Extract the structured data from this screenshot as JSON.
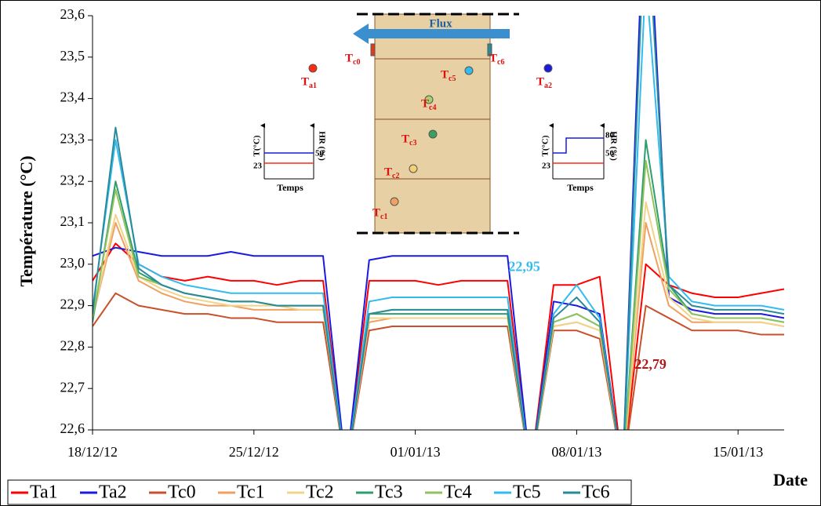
{
  "chart_data": {
    "type": "line",
    "y_label": "Température  (°C)",
    "x_label": "Date",
    "x": [
      "2012-12-18",
      "2012-12-19",
      "2012-12-20",
      "2012-12-21",
      "2012-12-22",
      "2012-12-23",
      "2012-12-24",
      "2012-12-25",
      "2012-12-26",
      "2012-12-27",
      "2012-12-28",
      "2012-12-29",
      "2012-12-30",
      "2012-12-31",
      "2013-01-01",
      "2013-01-02",
      "2013-01-03",
      "2013-01-04",
      "2013-01-05",
      "2013-01-06",
      "2013-01-07",
      "2013-01-08",
      "2013-01-09",
      "2013-01-10",
      "2013-01-11",
      "2013-01-12",
      "2013-01-13",
      "2013-01-14",
      "2013-01-15",
      "2013-01-16",
      "2013-01-17"
    ],
    "xlim": [
      "2012-12-18",
      "2013-01-17"
    ],
    "xticks": [
      {
        "value": "2012-12-18",
        "label": "18/12/12"
      },
      {
        "value": "2012-12-25",
        "label": "25/12/12"
      },
      {
        "value": "2013-01-01",
        "label": "01/01/13"
      },
      {
        "value": "2013-01-08",
        "label": "08/01/13"
      },
      {
        "value": "2013-01-15",
        "label": "15/01/13"
      }
    ],
    "ylim": [
      22.6,
      23.6
    ],
    "yticks": [
      {
        "value": 22.6,
        "label": "22,6"
      },
      {
        "value": 22.7,
        "label": "22,7"
      },
      {
        "value": 22.8,
        "label": "22,8"
      },
      {
        "value": 22.9,
        "label": "22,9"
      },
      {
        "value": 23.0,
        "label": "23,0"
      },
      {
        "value": 23.1,
        "label": "23,1"
      },
      {
        "value": 23.2,
        "label": "23,2"
      },
      {
        "value": 23.3,
        "label": "23,3"
      },
      {
        "value": 23.4,
        "label": "23,4"
      },
      {
        "value": 23.5,
        "label": "23,5"
      },
      {
        "value": 23.6,
        "label": "23,6"
      }
    ],
    "grid": false,
    "legend": "bottom-left",
    "series": [
      {
        "name": "Ta1",
        "color": "#ff0000",
        "values": [
          22.96,
          23.05,
          23.0,
          22.97,
          22.96,
          22.97,
          22.96,
          22.96,
          22.95,
          22.96,
          22.96,
          22.5,
          22.96,
          22.96,
          22.96,
          22.95,
          22.96,
          22.96,
          22.96,
          22.5,
          22.95,
          22.95,
          22.97,
          22.5,
          23.0,
          22.95,
          22.93,
          22.92,
          22.92,
          22.93,
          22.94
        ]
      },
      {
        "name": "Ta2",
        "color": "#1a1ae0",
        "values": [
          23.02,
          23.04,
          23.03,
          23.02,
          23.02,
          23.02,
          23.03,
          23.02,
          23.02,
          23.02,
          23.02,
          22.5,
          23.01,
          23.02,
          23.02,
          23.02,
          23.02,
          23.02,
          23.02,
          22.5,
          22.91,
          22.9,
          22.88,
          22.5,
          24.0,
          22.92,
          22.89,
          22.88,
          22.88,
          22.88,
          22.87
        ]
      },
      {
        "name": "Tc0",
        "color": "#c8502a",
        "values": [
          22.85,
          22.93,
          22.9,
          22.89,
          22.88,
          22.88,
          22.87,
          22.87,
          22.86,
          22.86,
          22.86,
          22.5,
          22.84,
          22.85,
          22.85,
          22.85,
          22.85,
          22.85,
          22.85,
          22.5,
          22.84,
          22.84,
          22.82,
          22.5,
          22.9,
          22.87,
          22.84,
          22.84,
          22.84,
          22.83,
          22.83
        ]
      },
      {
        "name": "Tc1",
        "color": "#f0a060",
        "values": [
          22.87,
          23.1,
          22.96,
          22.93,
          22.91,
          22.9,
          22.9,
          22.89,
          22.89,
          22.89,
          22.89,
          22.5,
          22.86,
          22.87,
          22.87,
          22.87,
          22.87,
          22.87,
          22.87,
          22.5,
          22.85,
          22.86,
          22.84,
          22.5,
          23.1,
          22.9,
          22.86,
          22.86,
          22.86,
          22.86,
          22.85
        ]
      },
      {
        "name": "Tc2",
        "color": "#f2d488",
        "values": [
          22.87,
          23.12,
          22.97,
          22.94,
          22.92,
          22.91,
          22.9,
          22.9,
          22.9,
          22.89,
          22.89,
          22.5,
          22.87,
          22.87,
          22.87,
          22.87,
          22.87,
          22.87,
          22.87,
          22.5,
          22.85,
          22.86,
          22.84,
          22.5,
          23.15,
          22.92,
          22.87,
          22.86,
          22.86,
          22.86,
          22.85
        ]
      },
      {
        "name": "Tc3",
        "color": "#2e9e6e",
        "values": [
          22.86,
          23.2,
          22.98,
          22.95,
          22.93,
          22.92,
          22.91,
          22.91,
          22.9,
          22.9,
          22.9,
          22.5,
          22.88,
          22.88,
          22.88,
          22.88,
          22.88,
          22.88,
          22.88,
          22.5,
          22.86,
          22.88,
          22.85,
          22.5,
          23.3,
          22.95,
          22.88,
          22.87,
          22.87,
          22.87,
          22.86
        ]
      },
      {
        "name": "Tc4",
        "color": "#92c25e",
        "values": [
          22.87,
          23.18,
          22.97,
          22.95,
          22.93,
          22.92,
          22.91,
          22.91,
          22.9,
          22.9,
          22.9,
          22.5,
          22.88,
          22.89,
          22.89,
          22.89,
          22.89,
          22.89,
          22.89,
          22.5,
          22.86,
          22.88,
          22.85,
          22.5,
          23.25,
          22.94,
          22.88,
          22.87,
          22.87,
          22.87,
          22.86
        ]
      },
      {
        "name": "Tc5",
        "color": "#33bbee",
        "values": [
          22.89,
          23.3,
          23.0,
          22.97,
          22.95,
          22.94,
          22.93,
          22.93,
          22.93,
          22.93,
          22.93,
          22.5,
          22.91,
          22.92,
          22.92,
          22.92,
          22.92,
          22.92,
          22.92,
          22.5,
          22.88,
          22.95,
          22.87,
          22.5,
          23.7,
          22.97,
          22.91,
          22.9,
          22.9,
          22.9,
          22.89
        ]
      },
      {
        "name": "Tc6",
        "color": "#2a8a9a",
        "values": [
          22.88,
          23.33,
          22.99,
          22.95,
          22.93,
          22.92,
          22.91,
          22.91,
          22.9,
          22.9,
          22.9,
          22.5,
          22.88,
          22.89,
          22.89,
          22.89,
          22.89,
          22.89,
          22.89,
          22.5,
          22.87,
          22.92,
          22.86,
          22.5,
          23.9,
          22.95,
          22.9,
          22.89,
          22.89,
          22.89,
          22.88
        ]
      }
    ],
    "annotations": [
      {
        "text": "22,95",
        "value": 22.95,
        "x": "2013-01-06",
        "color": "#33bbee"
      },
      {
        "text": "22,79",
        "value": 22.79,
        "x": "2013-01-11",
        "color": "#b01818"
      }
    ],
    "inset": {
      "flux": "Flux",
      "sensors": [
        "Ta1",
        "Ta2",
        "Tc0",
        "Tc1",
        "Tc2",
        "Tc3",
        "Tc4",
        "Tc5",
        "Tc6"
      ],
      "left_plot": {
        "y_title": "T(°C)",
        "y2_title": "HR (%)",
        "t_label": "23",
        "hr_labels": [
          "50"
        ],
        "x_title": "Temps"
      },
      "right_plot": {
        "y_title": "T(°C)",
        "y2_title": "HR (%)",
        "t_label": "23",
        "hr_labels": [
          "50",
          "80"
        ],
        "x_title": "Temps"
      }
    }
  }
}
